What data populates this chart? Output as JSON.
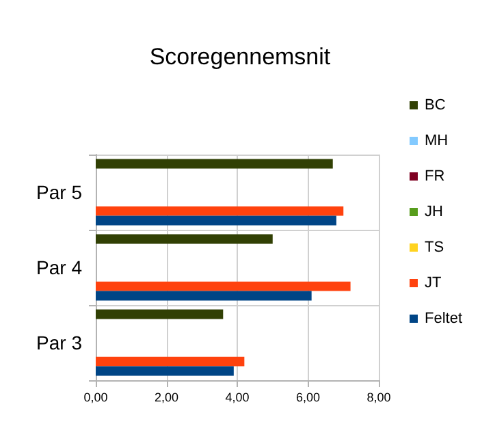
{
  "chart_data": {
    "type": "bar",
    "orientation": "horizontal",
    "title": "Scoregennemsnit",
    "categories": [
      "Par 5",
      "Par 4",
      "Par 3"
    ],
    "series": [
      {
        "name": "BC",
        "color": "#314004",
        "values": [
          6.7,
          5.0,
          3.6
        ]
      },
      {
        "name": "MH",
        "color": "#83caff",
        "values": [
          null,
          null,
          null
        ]
      },
      {
        "name": "FR",
        "color": "#7e0021",
        "values": [
          null,
          null,
          null
        ]
      },
      {
        "name": "JH",
        "color": "#579d1c",
        "values": [
          null,
          null,
          null
        ]
      },
      {
        "name": "TS",
        "color": "#ffd320",
        "values": [
          null,
          null,
          null
        ]
      },
      {
        "name": "JT",
        "color": "#ff420e",
        "values": [
          7.0,
          7.2,
          4.2
        ]
      },
      {
        "name": "Feltet",
        "color": "#004586",
        "values": [
          6.8,
          6.1,
          3.9
        ]
      }
    ],
    "xlim": [
      0,
      8
    ],
    "xticks": [
      {
        "value": 0,
        "label": "0,00"
      },
      {
        "value": 2,
        "label": "2,00"
      },
      {
        "value": 4,
        "label": "4,00"
      },
      {
        "value": 6,
        "label": "6,00"
      },
      {
        "value": 8,
        "label": "8,00"
      }
    ],
    "grid": true,
    "legend": "right"
  }
}
